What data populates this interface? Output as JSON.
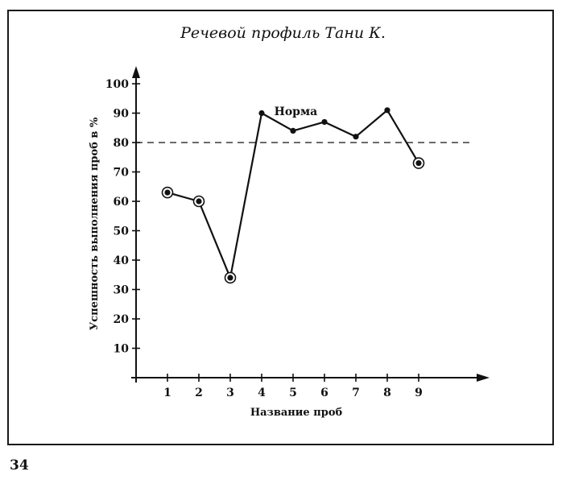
{
  "chart_data": {
    "type": "line",
    "title": "Речевой профиль Тани К.",
    "xlabel": "Название проб",
    "ylabel": "Успешность выполнения проб в %",
    "x": [
      1,
      2,
      3,
      4,
      5,
      6,
      7,
      8,
      9
    ],
    "x_ticks": [
      "1",
      "2",
      "3",
      "4",
      "5",
      "6",
      "7",
      "8",
      "9"
    ],
    "y_ticks": [
      "10",
      "20",
      "30",
      "40",
      "50",
      "60",
      "70",
      "80",
      "90",
      "100"
    ],
    "ylim": [
      0,
      100
    ],
    "xlim": [
      0,
      11
    ],
    "series": [
      {
        "values": [
          63,
          60,
          34,
          90,
          84,
          87,
          82,
          91,
          73
        ],
        "circled": [
          true,
          true,
          true,
          false,
          false,
          false,
          false,
          false,
          true
        ]
      }
    ],
    "reference_line": {
      "y": 80,
      "style": "dashed"
    },
    "annotations": [
      {
        "text": "Норма",
        "x": 4.4,
        "y": 91
      }
    ],
    "grid": false,
    "line_color": "#111111"
  },
  "page_number": "34"
}
